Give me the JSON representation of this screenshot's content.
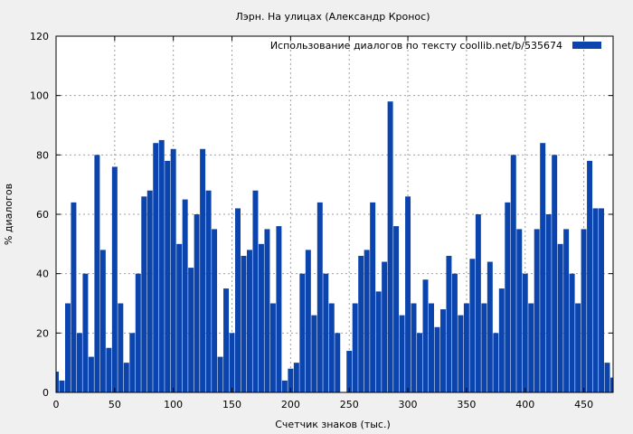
{
  "chart_data": {
    "type": "bar",
    "title": "Лэрн. На улицах (Александр Кронос)",
    "xlabel": "Счетчик знаков (тыс.)",
    "ylabel": "% диалогов",
    "xlim": [
      0,
      475
    ],
    "ylim": [
      0,
      120
    ],
    "xticks": [
      0,
      50,
      100,
      150,
      200,
      250,
      300,
      350,
      400,
      450
    ],
    "yticks": [
      0,
      20,
      40,
      60,
      80,
      100,
      120
    ],
    "grid": true,
    "legend_position": "top-right",
    "series": [
      {
        "name": "Использование диалогов по тексту  coollib.net/b/535674",
        "color": "#0b44ac",
        "x": [
          0,
          5,
          10,
          15,
          20,
          25,
          30,
          35,
          40,
          45,
          50,
          55,
          60,
          65,
          70,
          75,
          80,
          85,
          90,
          95,
          100,
          105,
          110,
          115,
          120,
          125,
          130,
          135,
          140,
          145,
          150,
          155,
          160,
          165,
          170,
          175,
          180,
          185,
          190,
          195,
          200,
          205,
          210,
          215,
          220,
          225,
          230,
          235,
          240,
          245,
          250,
          255,
          260,
          265,
          270,
          275,
          280,
          285,
          290,
          295,
          300,
          305,
          310,
          315,
          320,
          325,
          330,
          335,
          340,
          345,
          350,
          355,
          360,
          365,
          370,
          375,
          380,
          385,
          390,
          395,
          400,
          405,
          410,
          415,
          420,
          425,
          430,
          435,
          440,
          445,
          450,
          455,
          460,
          465,
          470,
          475
        ],
        "values": [
          7,
          4,
          30,
          64,
          20,
          40,
          12,
          80,
          48,
          15,
          76,
          30,
          10,
          20,
          40,
          66,
          68,
          84,
          85,
          78,
          82,
          50,
          65,
          42,
          60,
          82,
          68,
          55,
          12,
          35,
          20,
          62,
          46,
          48,
          68,
          50,
          55,
          30,
          56,
          4,
          8,
          10,
          40,
          48,
          26,
          64,
          40,
          30,
          20,
          0,
          14,
          30,
          46,
          48,
          64,
          34,
          44,
          98,
          56,
          26,
          66,
          30,
          20,
          38,
          30,
          22,
          28,
          46,
          40,
          26,
          30,
          45,
          60,
          30,
          44,
          20,
          35,
          64,
          80,
          55,
          40,
          30,
          55,
          84,
          60,
          80,
          50,
          55,
          40,
          30,
          55,
          78,
          62,
          62,
          10,
          5
        ]
      }
    ]
  }
}
